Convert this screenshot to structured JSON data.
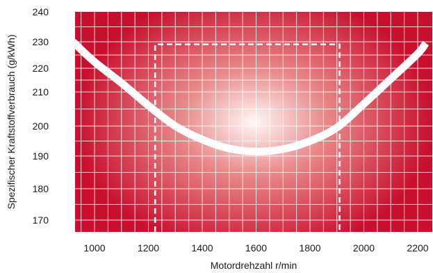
{
  "chart_data": {
    "type": "line",
    "title": "",
    "xlabel": "Motordrehzahl r/min",
    "ylabel": "Spezifischer Kraftstoffverbrauch (g/kWh)",
    "x_ticks": [
      "1000",
      "1200",
      "1400",
      "1600",
      "1800",
      "2000",
      "2200"
    ],
    "y_ticks": [
      "170",
      "180",
      "190",
      "200",
      "210",
      "220",
      "230",
      "240"
    ],
    "xlim": [
      920,
      2230
    ],
    "ylim": [
      165,
      240
    ],
    "grid": true,
    "legend": "none",
    "series": [
      {
        "x": [
          920,
          1000,
          1100,
          1200,
          1300,
          1400,
          1500,
          1600,
          1700,
          1800,
          1900,
          2000,
          2100,
          2200,
          2230
        ],
        "y": [
          230,
          222.4,
          213.8,
          206,
          200,
          195.5,
          192.5,
          191.5,
          192.3,
          195,
          199.5,
          206.5,
          215.5,
          225.5,
          229.5
        ]
      }
    ],
    "region": {
      "x": [
        1225,
        1910
      ],
      "y": [
        165,
        229
      ]
    },
    "colors": {
      "edge": "#c8102e",
      "center": "#fff8f6",
      "curve": "#ffffff",
      "grid": "#ffffff"
    }
  }
}
